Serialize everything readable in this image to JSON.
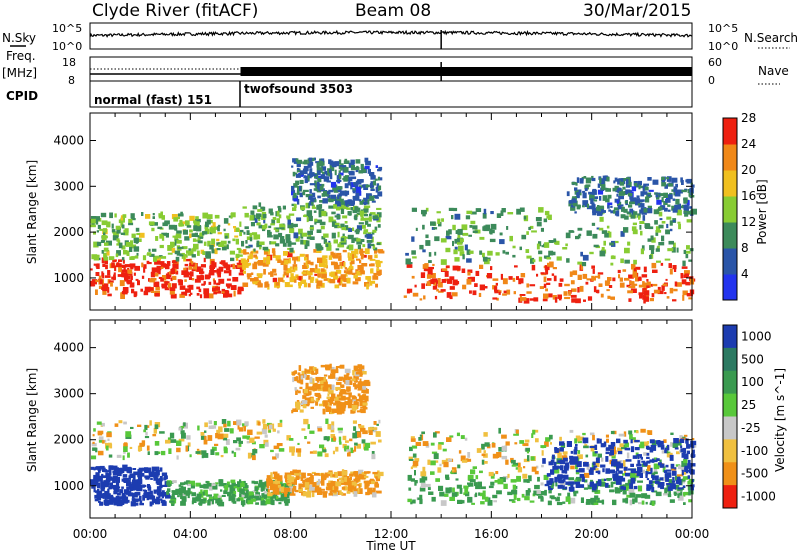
{
  "header": {
    "station": "Clyde River (fitACF)",
    "beam": "Beam 08",
    "date": "30/Mar/2015"
  },
  "top_panels": {
    "nsky_label": "N.Sky",
    "nsky_ticks": [
      "10^5",
      "10^0"
    ],
    "nsearch_label": "N.Search",
    "nsearch_ticks": [
      "10^5",
      "10^0"
    ],
    "freq_label": "Freq.",
    "freq_unit": "[MHz]",
    "freq_ticks": [
      "18",
      "8"
    ],
    "nave_label": "Nave",
    "nave_ticks": [
      "60",
      "0"
    ],
    "cpid_label": "CPID",
    "cpid_modes": [
      {
        "name": "normal (fast)",
        "id": "151",
        "start_hour": 0,
        "end_hour": 6
      },
      {
        "name": "twofsound",
        "id": "3503",
        "start_hour": 6,
        "end_hour": 24
      }
    ]
  },
  "chart_data": [
    {
      "type": "heatmap",
      "title": "",
      "xlabel": "Time UT",
      "ylabel": "Slant Range [km]",
      "xlim": [
        0,
        24
      ],
      "ylim": [
        300,
        4600
      ],
      "x_tick_labels": [
        "00:00",
        "04:00",
        "08:00",
        "12:00",
        "16:00",
        "20:00",
        "00:00"
      ],
      "y_ticks": [
        1000,
        2000,
        3000,
        4000
      ],
      "colorbar": {
        "label": "Power [dB]",
        "ticks": [
          4,
          8,
          12,
          16,
          20,
          24,
          28
        ],
        "colors": [
          "#2233ee",
          "#2a55a8",
          "#3c8a5a",
          "#88cc33",
          "#f0c020",
          "#f08818",
          "#ee2010"
        ],
        "range": [
          0,
          30
        ]
      },
      "dominant_power_db_low_range": 28,
      "regions": [
        {
          "t0": 0,
          "t1": 6,
          "r0": 600,
          "r1": 1400,
          "value": 28
        },
        {
          "t0": 0,
          "t1": 6,
          "r0": 1400,
          "r1": 2400,
          "value": 14
        },
        {
          "t0": 6,
          "t1": 11.5,
          "r0": 800,
          "r1": 1600,
          "value": 22
        },
        {
          "t0": 6,
          "t1": 11.5,
          "r0": 1600,
          "r1": 2600,
          "value": 12
        },
        {
          "t0": 8,
          "t1": 11.5,
          "r0": 2600,
          "r1": 3600,
          "value": 8
        },
        {
          "t0": 12.5,
          "t1": 24,
          "r0": 500,
          "r1": 1300,
          "value": 26
        },
        {
          "t0": 12.5,
          "t1": 24,
          "r0": 1300,
          "r1": 2500,
          "value": 12
        },
        {
          "t0": 19,
          "t1": 24,
          "r0": 2400,
          "r1": 3200,
          "value": 8
        }
      ]
    },
    {
      "type": "heatmap",
      "title": "",
      "xlabel": "Time UT",
      "ylabel": "Slant Range [km]",
      "xlim": [
        0,
        24
      ],
      "ylim": [
        300,
        4600
      ],
      "x_tick_labels": [
        "00:00",
        "04:00",
        "08:00",
        "12:00",
        "16:00",
        "20:00",
        "00:00"
      ],
      "y_ticks": [
        1000,
        2000,
        3000,
        4000
      ],
      "colorbar": {
        "label": "Velocity [m s^-1]",
        "ticks": [
          "1000",
          "500",
          "100",
          "25",
          "-25",
          "-100",
          "-500",
          "-1000"
        ],
        "colors": [
          "#1c3cb0",
          "#2c7a62",
          "#3a9a50",
          "#58c83a",
          "#c8c8c8",
          "#f0c040",
          "#f09018",
          "#ee2010"
        ],
        "range": [
          -1000,
          1000
        ]
      },
      "regions": [
        {
          "t0": 0,
          "t1": 3,
          "r0": 600,
          "r1": 1400,
          "value": 1000
        },
        {
          "t0": 3,
          "t1": 8,
          "r0": 600,
          "r1": 1100,
          "value": 100
        },
        {
          "t0": 0,
          "t1": 11.5,
          "r0": 1600,
          "r1": 2400,
          "value": 0
        },
        {
          "t0": 7,
          "t1": 11.5,
          "r0": 800,
          "r1": 1300,
          "value": -100
        },
        {
          "t0": 8,
          "t1": 11,
          "r0": 2600,
          "r1": 3600,
          "value": -100
        },
        {
          "t0": 12.5,
          "t1": 24,
          "r0": 600,
          "r1": 1200,
          "value": 100
        },
        {
          "t0": 12.5,
          "t1": 24,
          "r0": 1200,
          "r1": 2200,
          "value": 0
        },
        {
          "t0": 18,
          "t1": 24,
          "r0": 900,
          "r1": 2000,
          "value": 1000
        }
      ]
    }
  ]
}
